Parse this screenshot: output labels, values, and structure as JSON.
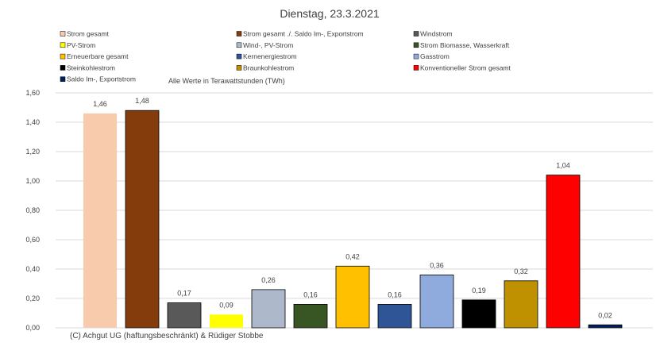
{
  "chart_data": {
    "type": "bar",
    "title": "Dienstag, 23.3.2021",
    "unit_note": "Alle Werte in Terawattstunden (TWh)",
    "credit": "(C) Achgut UG (haftungsbeschränkt) & Rüdiger Stobbe",
    "xlabel": "",
    "ylabel": "",
    "ylim": [
      0,
      1.6
    ],
    "yticks": [
      "0,00",
      "0,20",
      "0,40",
      "0,60",
      "0,80",
      "1,00",
      "1,20",
      "1,40",
      "1,60"
    ],
    "ytick_values": [
      0,
      0.2,
      0.4,
      0.6,
      0.8,
      1.0,
      1.2,
      1.4,
      1.6
    ],
    "grid": true,
    "legend_position": "top",
    "categories": [
      "Strom gesamt",
      "Strom gesamt ./. Saldo Im-, Exportstrom",
      "Windstrom",
      "PV-Strom",
      "Wind-, PV-Strom",
      "Strom Biomasse, Wasserkraft",
      "Erneuerbare gesamt",
      "Kernenergiestrom",
      "Gasstrom",
      "Steinkohlestrom",
      "Braunkohlestrom",
      "Konventioneller Strom gesamt",
      "Saldo Im-, Exportstrom"
    ],
    "values": [
      1.46,
      1.48,
      0.17,
      0.09,
      0.26,
      0.16,
      0.42,
      0.16,
      0.36,
      0.19,
      0.32,
      1.04,
      0.02
    ],
    "labels": [
      "1,46",
      "1,48",
      "0,17",
      "0,09",
      "0,26",
      "0,16",
      "0,42",
      "0,16",
      "0,36",
      "0,19",
      "0,32",
      "1,04",
      "0,02"
    ],
    "colors": [
      "#f8cbad",
      "#843c0c",
      "#595959",
      "#ffff00",
      "#adb9ca",
      "#375623",
      "#ffc000",
      "#2f5597",
      "#8faadc",
      "#000000",
      "#bf9000",
      "#ff0000",
      "#002060"
    ]
  }
}
